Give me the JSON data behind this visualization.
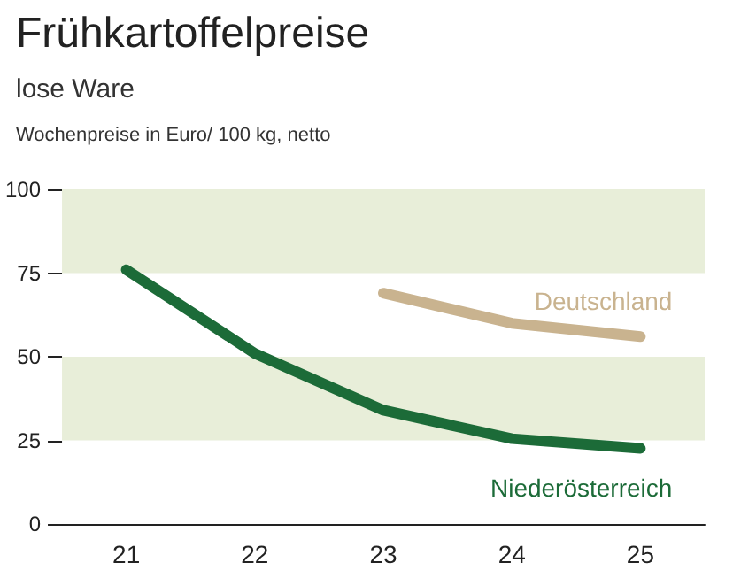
{
  "chart_data": {
    "type": "line",
    "title": "Frühkartoffelpreise",
    "subtitle": "lose Ware",
    "ylabel": "Wochenpreise in Euro/ 100 kg, netto",
    "categories": [
      "21",
      "22",
      "23",
      "24",
      "25"
    ],
    "series": [
      {
        "name": "Deutschland",
        "color": "#c9b38f",
        "values": [
          null,
          null,
          69,
          60,
          56
        ]
      },
      {
        "name": "Niederösterreich",
        "color": "#1c6b38",
        "values": [
          76,
          51,
          34,
          25.5,
          22.6
        ]
      }
    ],
    "ylim": [
      0,
      100
    ],
    "yticks": [
      0,
      25,
      50,
      75,
      100
    ],
    "grid": false,
    "legend": false,
    "marker": "none",
    "line_style": "solid",
    "bands": [
      {
        "axis": "y",
        "from": 25,
        "to": 50,
        "color": "#e8eed9"
      },
      {
        "axis": "y",
        "from": 75,
        "to": 100,
        "color": "#e8eed9"
      }
    ]
  }
}
